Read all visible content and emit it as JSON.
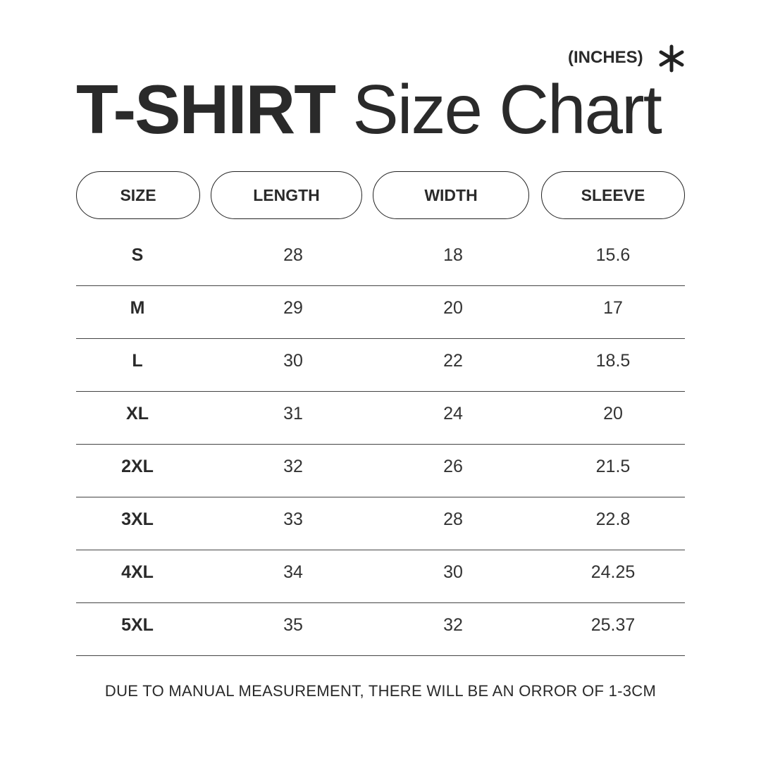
{
  "header": {
    "units": "(INCHES)",
    "units_icon": "asterisk-icon",
    "title_bold": "T-SHIRT",
    "title_regular": "Size Chart"
  },
  "table": {
    "columns": [
      "SIZE",
      "LENGTH",
      "WIDTH",
      "SLEEVE"
    ],
    "rows": [
      [
        "S",
        "28",
        "18",
        "15.6"
      ],
      [
        "M",
        "29",
        "20",
        "17"
      ],
      [
        "L",
        "30",
        "22",
        "18.5"
      ],
      [
        "XL",
        "31",
        "24",
        "20"
      ],
      [
        "2XL",
        "32",
        "26",
        "21.5"
      ],
      [
        "3XL",
        "33",
        "28",
        "22.8"
      ],
      [
        "4XL",
        "34",
        "30",
        "24.25"
      ],
      [
        "5XL",
        "35",
        "32",
        "25.37"
      ]
    ]
  },
  "footer": {
    "note": "DUE TO MANUAL MEASUREMENT, THERE WILL BE AN ORROR OF 1-3CM"
  }
}
